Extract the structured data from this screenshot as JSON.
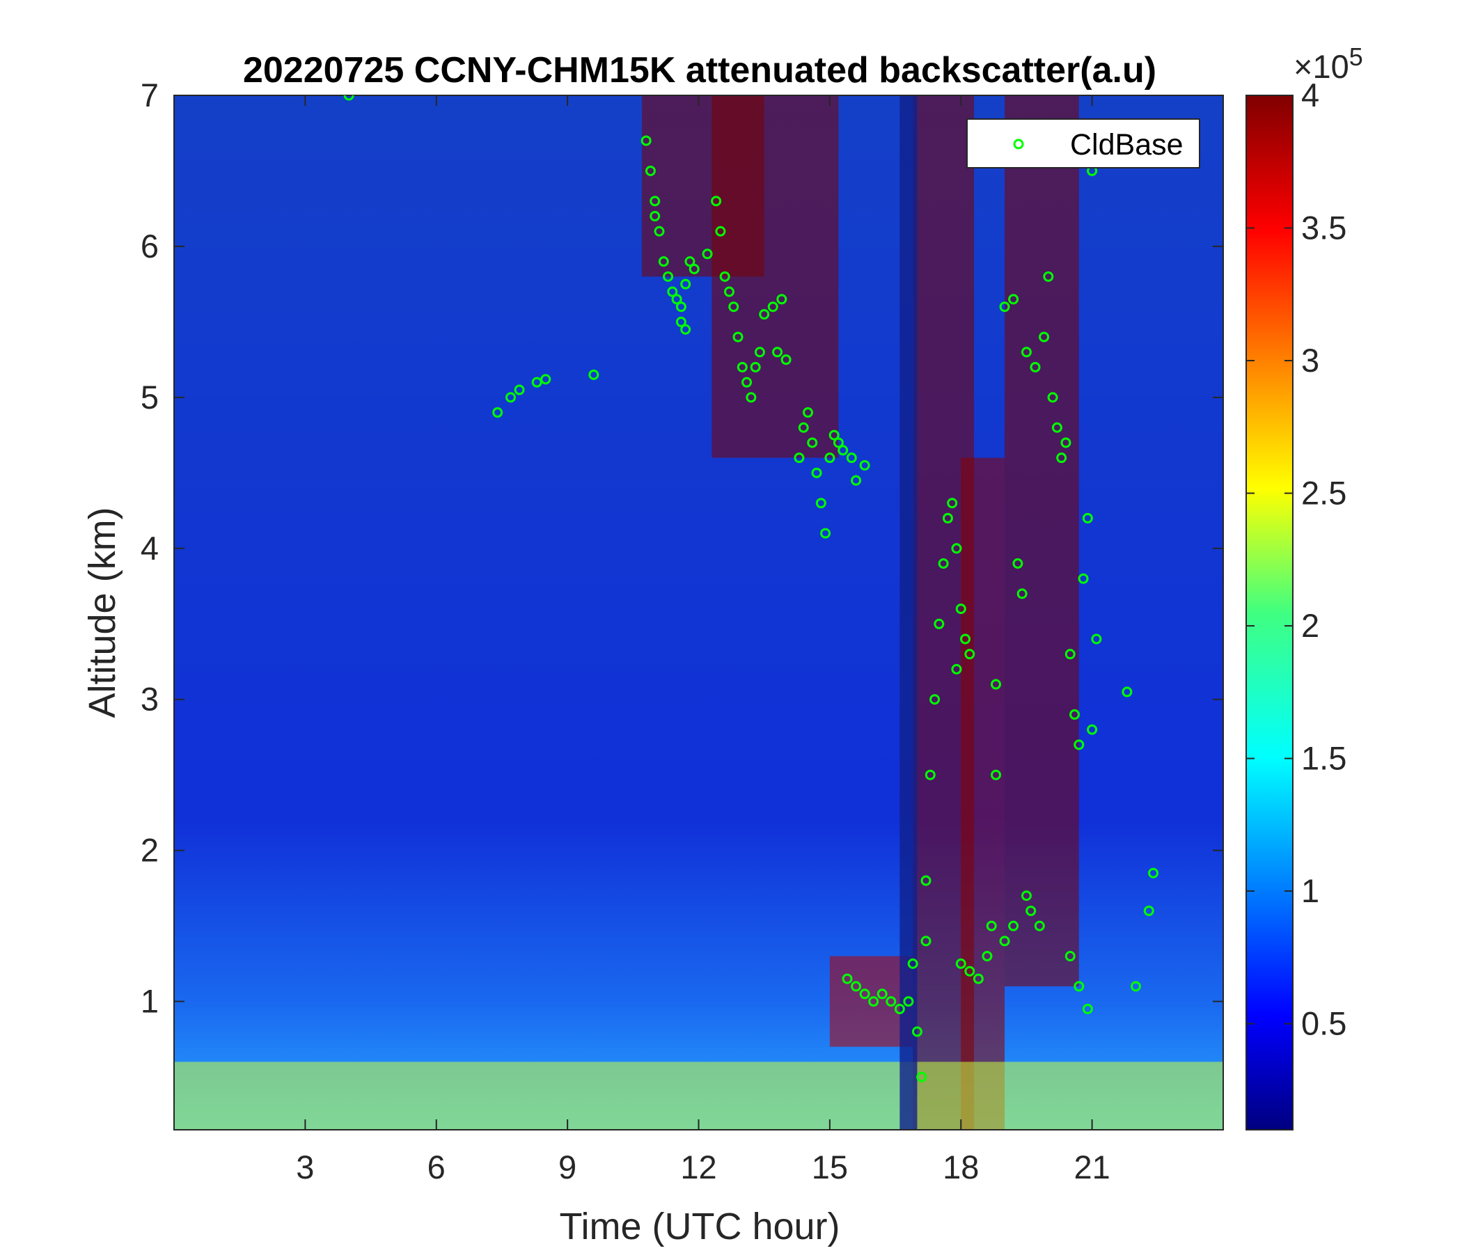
{
  "chart_data": {
    "type": "heatmap",
    "title": "20220725 CCNY-CHM15K attenuated backscatter(a.u)",
    "xlabel": "Time (UTC hour)",
    "ylabel": "Altitude (km)",
    "xlim": [
      0,
      24
    ],
    "ylim": [
      0.15,
      7
    ],
    "xticks": [
      3,
      6,
      9,
      12,
      15,
      18,
      21
    ],
    "yticks": [
      1,
      2,
      3,
      4,
      5,
      6,
      7
    ],
    "colorbar": {
      "colormap": "jet",
      "clim": [
        0.1,
        4.0
      ],
      "ticks": [
        0.5,
        1,
        1.5,
        2,
        2.5,
        3,
        3.5,
        4
      ],
      "exponent_prefix": "×10",
      "exponent": "5"
    },
    "legend": {
      "entries": [
        "CldBase"
      ],
      "location": "top-right"
    },
    "cloud_base_series": {
      "name": "CldBase",
      "marker": "circle",
      "color": "#00ff00",
      "points": [
        [
          4.0,
          7.0
        ],
        [
          7.4,
          4.9
        ],
        [
          7.7,
          5.0
        ],
        [
          7.9,
          5.05
        ],
        [
          8.3,
          5.1
        ],
        [
          8.5,
          5.12
        ],
        [
          9.6,
          5.15
        ],
        [
          10.8,
          6.7
        ],
        [
          10.9,
          6.5
        ],
        [
          11.0,
          6.3
        ],
        [
          11.0,
          6.2
        ],
        [
          11.1,
          6.1
        ],
        [
          11.2,
          5.9
        ],
        [
          11.3,
          5.8
        ],
        [
          11.4,
          5.7
        ],
        [
          11.5,
          5.65
        ],
        [
          11.6,
          5.6
        ],
        [
          11.7,
          5.75
        ],
        [
          11.8,
          5.9
        ],
        [
          11.9,
          5.85
        ],
        [
          12.2,
          5.95
        ],
        [
          11.7,
          5.45
        ],
        [
          11.6,
          5.5
        ],
        [
          12.4,
          6.3
        ],
        [
          12.5,
          6.1
        ],
        [
          12.6,
          5.8
        ],
        [
          12.7,
          5.7
        ],
        [
          12.8,
          5.6
        ],
        [
          12.9,
          5.4
        ],
        [
          13.0,
          5.2
        ],
        [
          13.1,
          5.1
        ],
        [
          13.2,
          5.0
        ],
        [
          13.3,
          5.2
        ],
        [
          13.4,
          5.3
        ],
        [
          13.5,
          5.55
        ],
        [
          13.7,
          5.6
        ],
        [
          13.9,
          5.65
        ],
        [
          13.8,
          5.3
        ],
        [
          14.0,
          5.25
        ],
        [
          14.3,
          4.6
        ],
        [
          14.4,
          4.8
        ],
        [
          14.5,
          4.9
        ],
        [
          14.6,
          4.7
        ],
        [
          14.7,
          4.5
        ],
        [
          14.8,
          4.3
        ],
        [
          14.9,
          4.1
        ],
        [
          15.0,
          4.6
        ],
        [
          15.1,
          4.75
        ],
        [
          15.2,
          4.7
        ],
        [
          15.3,
          4.65
        ],
        [
          15.5,
          4.6
        ],
        [
          15.6,
          4.45
        ],
        [
          15.8,
          4.55
        ],
        [
          15.4,
          1.15
        ],
        [
          15.6,
          1.1
        ],
        [
          15.8,
          1.05
        ],
        [
          16.0,
          1.0
        ],
        [
          16.2,
          1.05
        ],
        [
          16.4,
          1.0
        ],
        [
          16.6,
          0.95
        ],
        [
          16.8,
          1.0
        ],
        [
          16.9,
          1.25
        ],
        [
          17.0,
          0.8
        ],
        [
          17.1,
          0.5
        ],
        [
          17.2,
          1.4
        ],
        [
          17.2,
          1.8
        ],
        [
          17.3,
          2.5
        ],
        [
          17.4,
          3.0
        ],
        [
          17.5,
          3.5
        ],
        [
          17.6,
          3.9
        ],
        [
          17.7,
          4.2
        ],
        [
          17.8,
          4.3
        ],
        [
          17.9,
          4.0
        ],
        [
          18.0,
          3.6
        ],
        [
          18.1,
          3.4
        ],
        [
          18.2,
          3.3
        ],
        [
          17.9,
          3.2
        ],
        [
          18.0,
          1.25
        ],
        [
          18.2,
          1.2
        ],
        [
          18.4,
          1.15
        ],
        [
          18.6,
          1.3
        ],
        [
          18.7,
          1.5
        ],
        [
          18.8,
          2.5
        ],
        [
          18.8,
          3.1
        ],
        [
          19.0,
          1.4
        ],
        [
          19.2,
          1.5
        ],
        [
          19.3,
          3.9
        ],
        [
          19.4,
          3.7
        ],
        [
          19.5,
          1.7
        ],
        [
          19.6,
          1.6
        ],
        [
          19.8,
          1.5
        ],
        [
          19.0,
          5.6
        ],
        [
          19.2,
          5.65
        ],
        [
          19.5,
          5.3
        ],
        [
          19.7,
          5.2
        ],
        [
          19.9,
          5.4
        ],
        [
          20.0,
          5.8
        ],
        [
          20.1,
          5.0
        ],
        [
          20.2,
          4.8
        ],
        [
          20.3,
          4.6
        ],
        [
          20.4,
          4.7
        ],
        [
          20.5,
          3.3
        ],
        [
          20.6,
          2.9
        ],
        [
          20.7,
          2.7
        ],
        [
          20.8,
          3.8
        ],
        [
          20.9,
          4.2
        ],
        [
          21.0,
          2.8
        ],
        [
          21.1,
          3.4
        ],
        [
          21.0,
          6.5
        ],
        [
          20.5,
          1.3
        ],
        [
          20.7,
          1.1
        ],
        [
          20.9,
          0.95
        ],
        [
          21.8,
          3.05
        ],
        [
          22.0,
          1.1
        ],
        [
          22.3,
          1.6
        ],
        [
          22.4,
          1.85
        ]
      ]
    }
  }
}
